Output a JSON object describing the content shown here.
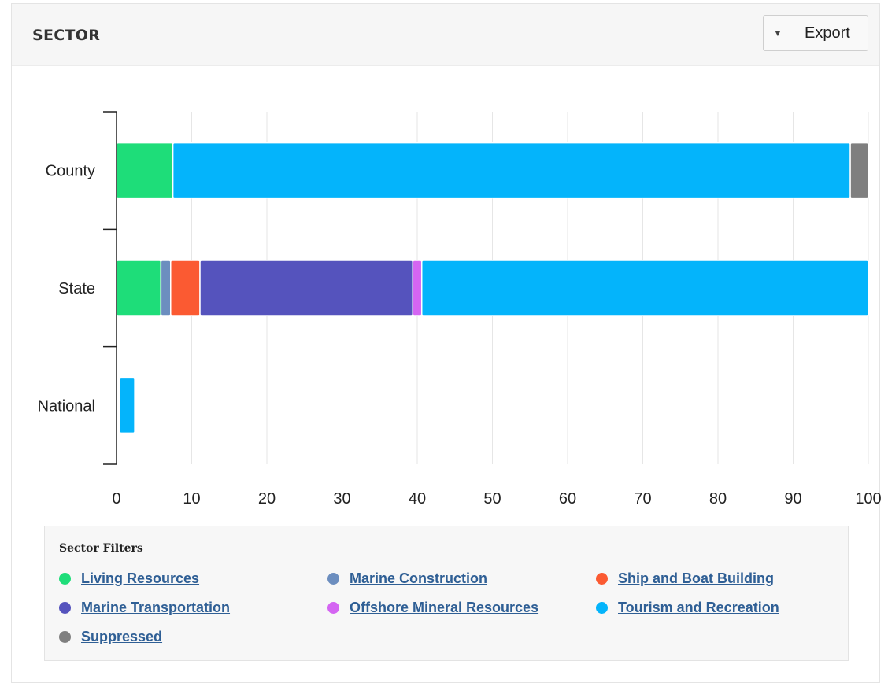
{
  "panel": {
    "title": "SECTOR",
    "export": {
      "caret": "▼",
      "label": "Export"
    }
  },
  "chart_data": {
    "type": "bar",
    "orientation": "horizontal",
    "stacked": true,
    "categories": [
      "County",
      "State",
      "National"
    ],
    "xlim": [
      0,
      100
    ],
    "x_ticks": [
      0,
      10,
      20,
      30,
      40,
      50,
      60,
      70,
      80,
      90,
      100
    ],
    "grid": "vertical",
    "legend_position": "bottom",
    "series": [
      {
        "name": "Living Resources",
        "color": "#1edd79",
        "values": [
          7.5,
          5.9,
          0
        ]
      },
      {
        "name": "Marine Construction",
        "color": "#6c8ebf",
        "values": [
          0,
          1.3,
          0
        ]
      },
      {
        "name": "Ship and Boat Building",
        "color": "#fb5a32",
        "values": [
          0,
          3.9,
          0
        ]
      },
      {
        "name": "Marine Transportation",
        "color": "#5553bd",
        "values": [
          0,
          28.3,
          0
        ]
      },
      {
        "name": "Offshore Mineral Resources",
        "color": "#d465f2",
        "values": [
          0,
          1.2,
          0
        ]
      },
      {
        "name": "Tourism and Recreation",
        "color": "#04b4fb",
        "values": [
          90.1,
          59.4,
          2.0
        ]
      },
      {
        "name": "Suppressed",
        "color": "#7f7f7f",
        "values": [
          2.4,
          0,
          0
        ]
      }
    ]
  },
  "legend": {
    "title": "Sector Filters",
    "items": [
      {
        "label": "Living Resources",
        "color": "#1edd79",
        "icon": "dot-icon"
      },
      {
        "label": "Marine Construction",
        "color": "#6c8ebf",
        "icon": "dot-icon"
      },
      {
        "label": "Ship and Boat Building",
        "color": "#fb5a32",
        "icon": "dot-icon"
      },
      {
        "label": "Marine Transportation",
        "color": "#5553bd",
        "icon": "dot-icon"
      },
      {
        "label": "Offshore Mineral Resources",
        "color": "#d465f2",
        "icon": "dot-icon"
      },
      {
        "label": "Tourism and Recreation",
        "color": "#04b4fb",
        "icon": "dot-icon"
      },
      {
        "label": "Suppressed",
        "color": "#7f7f7f",
        "icon": "dot-icon"
      }
    ]
  }
}
